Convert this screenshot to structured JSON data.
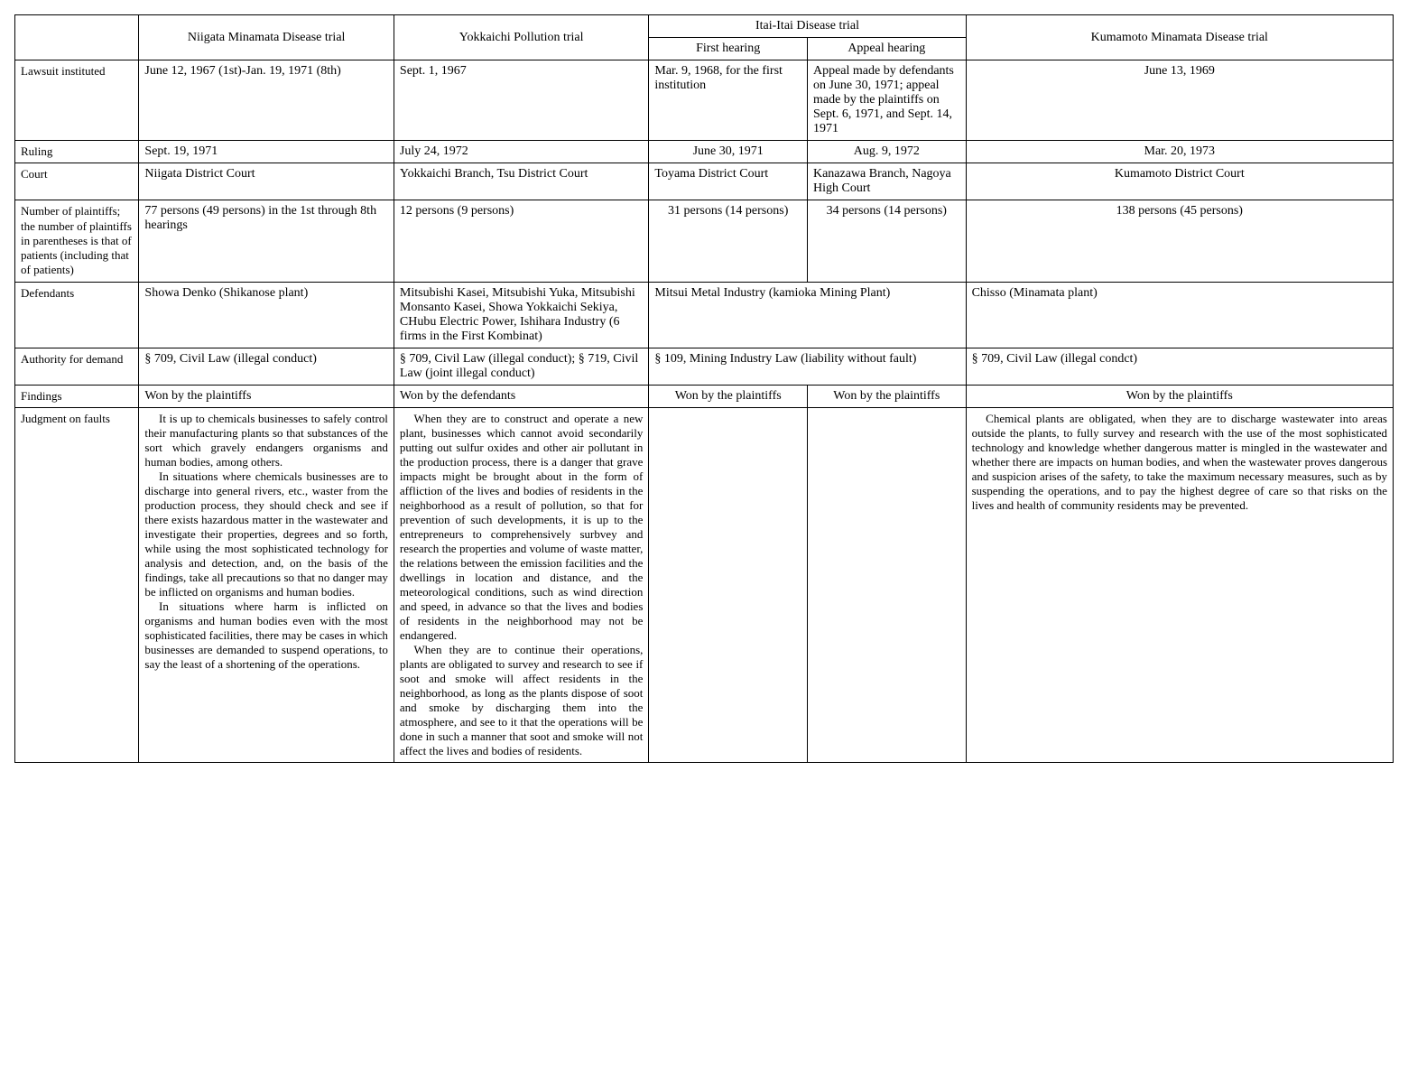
{
  "columns": {
    "niigata": "Niigata Minamata Disease trial",
    "yokkaichi": "Yokkaichi Pollution trial",
    "itai": "Itai-Itai Disease trial",
    "itai_first": "First hearing",
    "itai_appeal": "Appeal hearing",
    "kumamoto": "Kumamoto Minamata Disease trial"
  },
  "rows": {
    "lawsuit": {
      "label": "Lawsuit instituted",
      "niigata": "June 12, 1967 (1st)-Jan. 19, 1971 (8th)",
      "yokkaichi": "Sept. 1, 1967",
      "itai_first": "Mar. 9, 1968, for the first institution",
      "itai_appeal": "Appeal made by defendants on June 30, 1971; appeal made by the plaintiffs on Sept. 6, 1971, and Sept. 14, 1971",
      "kumamoto": "June 13, 1969"
    },
    "ruling": {
      "label": "Ruling",
      "niigata": "Sept. 19, 1971",
      "yokkaichi": "July 24, 1972",
      "itai_first": "June 30, 1971",
      "itai_appeal": "Aug. 9, 1972",
      "kumamoto": "Mar. 20, 1973"
    },
    "court": {
      "label": "Court",
      "niigata": "Niigata District Court",
      "yokkaichi": "Yokkaichi Branch, Tsu District Court",
      "itai_first": "Toyama District Court",
      "itai_appeal": "Kanazawa Branch, Nagoya High Court",
      "kumamoto": "Kumamoto District Court"
    },
    "plaintiffs": {
      "label": "Number of plaintiffs; the number of plaintiffs in parentheses is that of patients (including that of patients)",
      "niigata": "77 persons (49 persons) in the 1st through 8th hearings",
      "yokkaichi": "12 persons (9 persons)",
      "itai_first": "31 persons (14 persons)",
      "itai_appeal": "34 persons (14 persons)",
      "kumamoto": "138 persons (45 persons)"
    },
    "defendants": {
      "label": "Defendants",
      "niigata": "Showa Denko (Shikanose plant)",
      "yokkaichi": "Mitsubishi Kasei, Mitsubishi Yuka, Mitsubishi Monsanto Kasei, Showa Yokkaichi Sekiya, CHubu Electric Power, Ishihara Industry (6 firms in the First Kombinat)",
      "itai": "Mitsui Metal Industry (kamioka Mining Plant)",
      "kumamoto": "Chisso (Minamata plant)"
    },
    "authority": {
      "label": "Authority for demand",
      "niigata": "§ 709, Civil Law (illegal conduct)",
      "yokkaichi": "§ 709, Civil Law (illegal conduct); § 719, Civil Law (joint illegal conduct)",
      "itai": "§ 109, Mining Industry Law (liability without fault)",
      "kumamoto": "§ 709, Civil Law (illegal condct)"
    },
    "findings": {
      "label": "Findings",
      "niigata": "Won by the plaintiffs",
      "yokkaichi": "Won by the defendants",
      "itai_first": "Won by the plaintiffs",
      "itai_appeal": "Won by the plaintiffs",
      "kumamoto": "Won by the plaintiffs"
    },
    "judgment": {
      "label": "Judgment on faults",
      "niigata_p1": "It is up to chemicals businesses to safely control their manufacturing plants so that substances of the sort which gravely endangers organisms and human bodies, among others.",
      "niigata_p2": "In situations where chemicals businesses are to discharge into general rivers, etc., waster from the production process, they should check and see if there exists hazardous matter in the wastewater and investigate their properties, degrees and so forth, while using the most sophisticated technology for analysis and detection, and, on the basis of the findings, take all precautions so that no danger may be inflicted on organisms and human bodies.",
      "niigata_p3": "In situations where harm is inflicted on organisms and human bodies even with the most sophisticated facilities, there may be cases in which businesses are demanded to suspend operations, to say the least of a shortening of the operations.",
      "yokkaichi_p1": "When they are to construct and operate a new plant, businesses which cannot avoid secondarily putting out sulfur oxides and other air pollutant in the production process, there is a danger that grave impacts might be brought about in the form of affliction of the lives and bodies of residents in the neighborhood as a result of pollution, so that for prevention of such developments, it is up to the entrepreneurs to comprehensively surbvey and research the properties and volume of waste matter, the relations between the emission facilities and the dwellings in location and distance, and the meteorological conditions, such as wind direction and speed, in advance so that the lives and bodies of residents in the neighborhood may not be endangered.",
      "yokkaichi_p2": "When they are to continue their operations, plants are obligated to survey and research to see if soot and smoke will affect residents in the neighborhood, as long as the plants dispose of soot and smoke by discharging them into the atmosphere, and see to it that the operations will be done in such a manner that soot and smoke will not affect the lives and bodies of residents.",
      "itai_first": "",
      "itai_appeal": "",
      "kumamoto_p1": "Chemical plants are obligated, when they are to discharge wastewater into areas outside the plants, to fully survey and research with the use of the most sophisticated technology and knowledge whether dangerous matter is mingled in the wastewater and whether there are impacts on human bodies, and when the wastewater proves dangerous and suspicion arises of the safety, to take the maximum necessary measures, such as by suspending the operations, and to pay the highest degree of care so that risks on the lives and health of community residents may be prevented."
    }
  }
}
